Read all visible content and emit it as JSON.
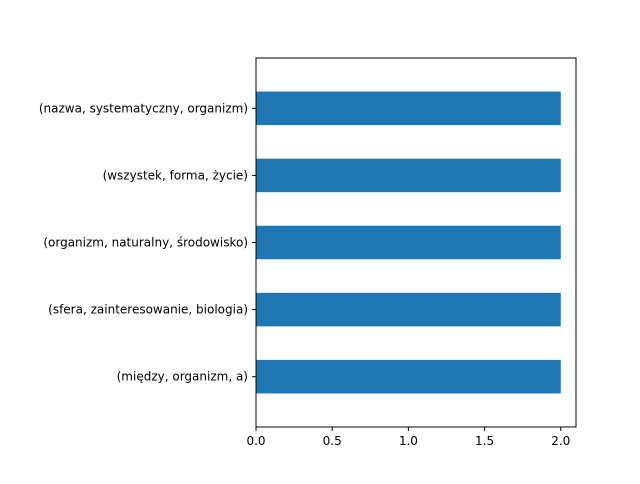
{
  "chart_data": {
    "type": "bar",
    "orientation": "horizontal",
    "title": "",
    "xlabel": "",
    "ylabel": "",
    "categories": [
      "(między, organizm, a)",
      "(sfera, zainteresowanie, biologia)",
      "(organizm, naturalny, środowisko)",
      "(wszystek, forma, życie)",
      "(nazwa, systematyczny, organizm)"
    ],
    "values": [
      2,
      2,
      2,
      2,
      2
    ],
    "xlim": [
      0,
      2.1
    ],
    "xticks": [
      0.0,
      0.5,
      1.0,
      1.5,
      2.0
    ],
    "xtick_labels": [
      "0.0",
      "0.5",
      "1.0",
      "1.5",
      "2.0"
    ],
    "bar_color": "#1f77b4",
    "grid": false,
    "legend": "none"
  }
}
